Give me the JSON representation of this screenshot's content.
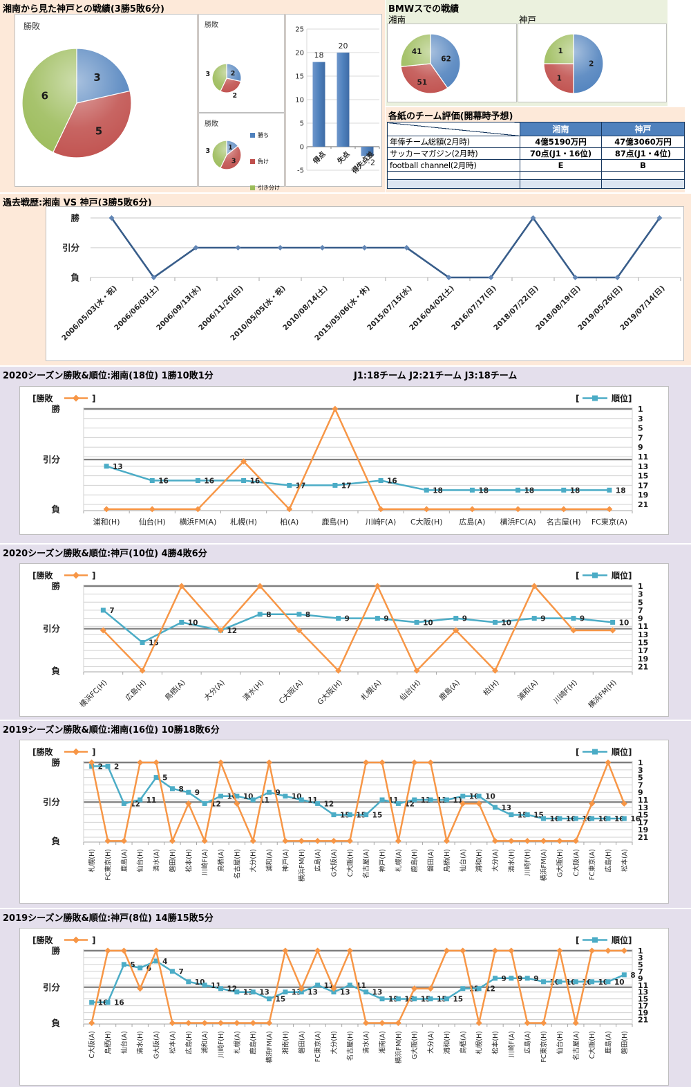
{
  "titles": {
    "h2h": "湘南から見た神戸との戦績(3勝5敗6分)",
    "bmw": "BMWスでの戦績",
    "ratings": "各紙のチーム評価(開幕時予想)",
    "history": "過去戦歴:湘南 VS 神戸(3勝5敗6分)",
    "league_note": "J1:18チーム  J2:21チーム  J3:18チーム"
  },
  "colors": {
    "win_blue": "#4F81BD",
    "lose_red": "#C0504D",
    "draw_green": "#9BBB59",
    "orange": "#F79646",
    "teal": "#4BACC6",
    "navy": "#385D8A",
    "section_peach": "#FDE9D9",
    "section_green": "#EBF1DE",
    "section_lavender": "#E4DFEC",
    "table_header_blue": "#4F81BD",
    "table_empty_blue": "#DCE6F1"
  },
  "chart_data": [
    {
      "type": "pie",
      "title": "勝敗",
      "labels": [
        "勝ち",
        "負け",
        "引き分け"
      ],
      "values": [
        3,
        5,
        6
      ]
    },
    {
      "type": "pie",
      "title": "勝敗",
      "labels": [
        "勝ち",
        "負け",
        "引き分け"
      ],
      "values": [
        2,
        2,
        3
      ]
    },
    {
      "type": "pie",
      "title": "勝敗",
      "labels": [
        "勝ち",
        "負け",
        "引き分け"
      ],
      "values": [
        1,
        3,
        3
      ]
    },
    {
      "type": "bar",
      "categories": [
        "得点",
        "失点",
        "得失点差"
      ],
      "values": [
        18,
        20,
        -2
      ],
      "ylim": [
        -5,
        25
      ],
      "ystep": 5
    },
    {
      "type": "pie",
      "title": "湘南",
      "labels": [
        "勝ち",
        "負け",
        "引き分け"
      ],
      "values": [
        62,
        51,
        41
      ]
    },
    {
      "type": "pie",
      "title": "神戸",
      "labels": [
        "勝ち",
        "負け",
        "引き分け"
      ],
      "values": [
        2,
        1,
        1
      ]
    },
    {
      "type": "line",
      "title": "過去戦歴:湘南 VS 神戸(3勝5敗6分)",
      "y_levels": [
        "勝",
        "引分",
        "負"
      ],
      "x": [
        "2006/05/03(水・祝)",
        "2006/06/03(土)",
        "2006/09/13(水)",
        "2006/11/26(日)",
        "2010/05/05(水・祝)",
        "2010/08/14(土)",
        "2015/05/06(水・休)",
        "2015/07/15(水)",
        "2016/04/02(土)",
        "2016/07/17(日)",
        "2018/07/22(日)",
        "2018/08/19(日)",
        "2019/05/26(日)",
        "2019/07/14(日)"
      ],
      "results": [
        "勝",
        "負",
        "引分",
        "引分",
        "引分",
        "引分",
        "引分",
        "引分",
        "負",
        "負",
        "勝",
        "負",
        "負",
        "勝"
      ]
    },
    {
      "type": "line",
      "title": "2020シーズン勝敗&順位:湘南(18位) 1勝10敗1分",
      "note": "J1:18チーム  J2:21チーム  J3:18チーム",
      "series_names": [
        "勝敗",
        "順位"
      ],
      "y_levels": [
        "勝",
        "引分",
        "負"
      ],
      "rank_ticks": [
        1,
        3,
        5,
        7,
        9,
        11,
        13,
        15,
        17,
        19,
        21
      ],
      "x": [
        "浦和(H)",
        "仙台(H)",
        "横浜FM(A)",
        "札幌(H)",
        "柏(A)",
        "鹿島(H)",
        "川崎F(A)",
        "C大阪(H)",
        "広島(A)",
        "横浜FC(A)",
        "名古屋(H)",
        "FC東京(A)"
      ],
      "results": [
        "負",
        "負",
        "負",
        "引分",
        "負",
        "勝",
        "負",
        "負",
        "負",
        "負",
        "負",
        "負"
      ],
      "ranks": [
        13,
        16,
        16,
        16,
        17,
        17,
        16,
        18,
        18,
        18,
        18,
        18
      ]
    },
    {
      "type": "line",
      "title": "2020シーズン勝敗&順位:神戸(10位) 4勝4敗6分",
      "series_names": [
        "勝敗",
        "順位"
      ],
      "y_levels": [
        "勝",
        "引分",
        "負"
      ],
      "rank_ticks": [
        1,
        3,
        5,
        7,
        9,
        11,
        13,
        15,
        17,
        19,
        21
      ],
      "x": [
        "横浜FC(H)",
        "広島(H)",
        "鳥栖(A)",
        "大分(A)",
        "清水(H)",
        "C大阪(A)",
        "G大阪(H)",
        "札幌(A)",
        "仙台(H)",
        "鹿島(A)",
        "柏(H)",
        "浦和(A)",
        "川崎F(H)",
        "横浜FM(H)"
      ],
      "results": [
        "引分",
        "負",
        "勝",
        "引分",
        "勝",
        "引分",
        "負",
        "勝",
        "負",
        "引分",
        "負",
        "勝",
        "引分",
        "引分"
      ],
      "ranks": [
        7,
        15,
        10,
        12,
        8,
        8,
        9,
        9,
        10,
        9,
        10,
        9,
        9,
        10
      ]
    },
    {
      "type": "line",
      "title": "2019シーズン勝敗&順位:湘南(16位) 10勝18敗6分",
      "series_names": [
        "勝敗",
        "順位"
      ],
      "y_levels": [
        "勝",
        "引分",
        "負"
      ],
      "rank_ticks": [
        1,
        3,
        5,
        7,
        9,
        11,
        13,
        15,
        17,
        19,
        21
      ],
      "x": [
        "札幌(H)",
        "FC東京(H)",
        "鹿島(A)",
        "仙台(H)",
        "清水(A)",
        "磐田(H)",
        "松本(H)",
        "川崎F(A)",
        "鳥栖(A)",
        "名古屋(H)",
        "大分(H)",
        "浦和(A)",
        "神戸(A)",
        "横浜FM(H)",
        "広島(A)",
        "G大阪(A)",
        "C大阪(H)",
        "名古屋(A)",
        "神戸(H)",
        "札幌(A)",
        "鹿島(H)",
        "磐田(A)",
        "鳥栖(H)",
        "仙台(A)",
        "浦和(H)",
        "大分(A)",
        "清水(H)",
        "川崎F(H)",
        "横浜FM(A)",
        "G大阪(H)",
        "C大阪(A)",
        "FC東京(A)",
        "広島(H)",
        "松本(A)"
      ],
      "results": [
        "勝",
        "負",
        "負",
        "勝",
        "勝",
        "負",
        "引分",
        "負",
        "勝",
        "引分",
        "負",
        "勝",
        "負",
        "負",
        "負",
        "負",
        "負",
        "勝",
        "勝",
        "負",
        "勝",
        "勝",
        "負",
        "引分",
        "引分",
        "負",
        "負",
        "負",
        "負",
        "負",
        "負",
        "引分",
        "勝",
        "引分"
      ],
      "ranks": [
        2,
        2,
        12,
        11,
        5,
        8,
        9,
        12,
        10,
        10,
        11,
        9,
        10,
        11,
        12,
        15,
        15,
        15,
        11,
        12,
        11,
        11,
        11,
        10,
        10,
        13,
        15,
        15,
        16,
        16,
        16,
        16,
        16,
        16
      ]
    },
    {
      "type": "line",
      "title": "2019シーズン勝敗&順位:神戸(8位) 14勝15敗5分",
      "series_names": [
        "勝敗",
        "順位"
      ],
      "y_levels": [
        "勝",
        "引分",
        "負"
      ],
      "rank_ticks": [
        1,
        3,
        5,
        7,
        9,
        11,
        13,
        15,
        17,
        19,
        21
      ],
      "x": [
        "C大阪(A)",
        "鳥栖(H)",
        "仙台(A)",
        "清水(H)",
        "G大阪(A)",
        "松本(A)",
        "広島(H)",
        "浦和(A)",
        "川崎F(H)",
        "札幌(A)",
        "鹿島(H)",
        "横浜FM(A)",
        "湘南(H)",
        "磐田(A)",
        "FC東京(A)",
        "大分(H)",
        "名古屋(H)",
        "清水(A)",
        "湘南(A)",
        "横浜FM(H)",
        "G大阪(H)",
        "大分(A)",
        "浦和(H)",
        "鳥栖(A)",
        "札幌(H)",
        "松本(H)",
        "川崎F(A)",
        "広島(A)",
        "FC東京(H)",
        "仙台(H)",
        "名古屋(A)",
        "C大阪(H)",
        "鹿島(A)",
        "磐田(H)"
      ],
      "results": [
        "負",
        "勝",
        "勝",
        "引分",
        "勝",
        "負",
        "負",
        "負",
        "負",
        "負",
        "負",
        "負",
        "勝",
        "引分",
        "勝",
        "引分",
        "勝",
        "負",
        "負",
        "負",
        "引分",
        "引分",
        "勝",
        "勝",
        "負",
        "勝",
        "勝",
        "負",
        "負",
        "勝",
        "負",
        "勝",
        "勝",
        "勝"
      ],
      "ranks": [
        16,
        16,
        5,
        6,
        4,
        7,
        10,
        11,
        12,
        13,
        13,
        15,
        13,
        13,
        11,
        13,
        11,
        13,
        15,
        15,
        15,
        15,
        15,
        12,
        12,
        9,
        9,
        9,
        10,
        10,
        10,
        10,
        10,
        8
      ]
    },
    {
      "type": "table",
      "title": "各紙のチーム評価(開幕時予想)",
      "columns": [
        "湘南",
        "神戸"
      ],
      "rows": [
        {
          "label": "年俸チーム総額(2月時)",
          "values": [
            "4億5190万円",
            "47億3060万円"
          ]
        },
        {
          "label": "サッカーマガジン(2月時)",
          "values": [
            "70点(J1・16位)",
            "87点(J1・4位)"
          ]
        },
        {
          "label": "football channel(2月時)",
          "values": [
            "E",
            "B"
          ]
        },
        {
          "label": "",
          "values": [
            "",
            ""
          ]
        },
        {
          "label": "",
          "values": [
            "",
            ""
          ]
        }
      ]
    }
  ]
}
